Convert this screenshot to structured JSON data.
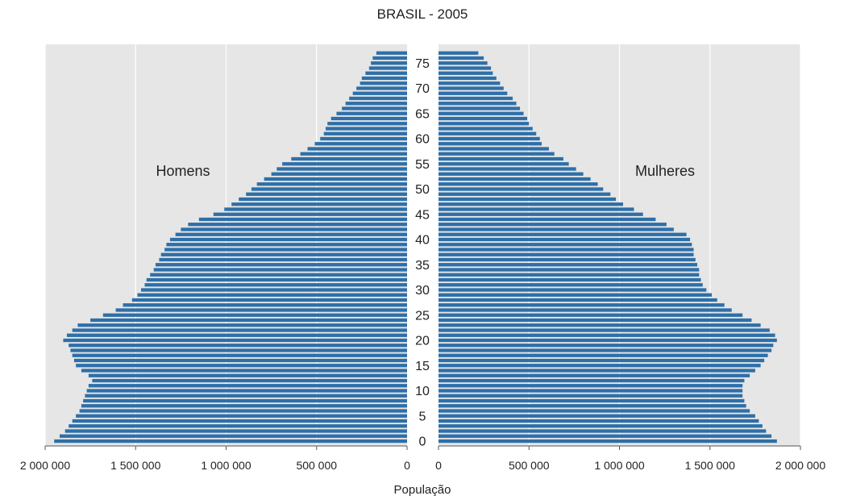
{
  "chart_data": {
    "type": "bar",
    "orientation": "horizontal",
    "title": "BRASIL - 2005",
    "xlabel": "População",
    "xlim": [
      0,
      2000000
    ],
    "x_ticks": [
      0,
      500000,
      1000000,
      1500000,
      2000000
    ],
    "x_tick_labels": [
      "0",
      "500 000",
      "1 000 000",
      "1 500 000",
      "2 000 000"
    ],
    "age_ticks": [
      0,
      5,
      10,
      15,
      20,
      25,
      30,
      35,
      40,
      45,
      50,
      55,
      60,
      65,
      70,
      75
    ],
    "age_tick_labels": [
      "0",
      "5",
      "10",
      "15",
      "20",
      "25",
      "30",
      "35",
      "40",
      "45",
      "50",
      "55",
      "60",
      "65",
      "70",
      "75"
    ],
    "grid": true,
    "colors": {
      "bar": "#2e6fa8",
      "background": "#e6e6e6",
      "grid": "#ffffff"
    },
    "categories": [
      0,
      1,
      2,
      3,
      4,
      5,
      6,
      7,
      8,
      9,
      10,
      11,
      12,
      13,
      14,
      15,
      16,
      17,
      18,
      19,
      20,
      21,
      22,
      23,
      24,
      25,
      26,
      27,
      28,
      29,
      30,
      31,
      32,
      33,
      34,
      35,
      36,
      37,
      38,
      39,
      40,
      41,
      42,
      43,
      44,
      45,
      46,
      47,
      48,
      49,
      50,
      51,
      52,
      53,
      54,
      55,
      56,
      57,
      58,
      59,
      60,
      61,
      62,
      63,
      64,
      65,
      66,
      67,
      68,
      69,
      70,
      71,
      72,
      73,
      74,
      75,
      76,
      77
    ],
    "series": [
      {
        "name": "Homens",
        "side": "left",
        "values": [
          1950000,
          1920000,
          1890000,
          1870000,
          1850000,
          1830000,
          1810000,
          1800000,
          1790000,
          1780000,
          1770000,
          1760000,
          1740000,
          1760000,
          1800000,
          1830000,
          1840000,
          1850000,
          1860000,
          1870000,
          1900000,
          1880000,
          1850000,
          1820000,
          1750000,
          1680000,
          1610000,
          1570000,
          1520000,
          1490000,
          1470000,
          1450000,
          1440000,
          1420000,
          1400000,
          1390000,
          1370000,
          1360000,
          1340000,
          1330000,
          1310000,
          1280000,
          1250000,
          1210000,
          1150000,
          1070000,
          1010000,
          970000,
          930000,
          890000,
          860000,
          830000,
          790000,
          750000,
          720000,
          690000,
          640000,
          590000,
          550000,
          510000,
          480000,
          460000,
          450000,
          440000,
          420000,
          390000,
          360000,
          340000,
          320000,
          300000,
          280000,
          260000,
          250000,
          230000,
          210000,
          200000,
          190000,
          170000
        ]
      },
      {
        "name": "Mulheres",
        "side": "right",
        "values": [
          1870000,
          1840000,
          1810000,
          1790000,
          1770000,
          1750000,
          1720000,
          1700000,
          1690000,
          1680000,
          1680000,
          1680000,
          1690000,
          1720000,
          1750000,
          1780000,
          1800000,
          1820000,
          1840000,
          1850000,
          1870000,
          1860000,
          1830000,
          1780000,
          1730000,
          1680000,
          1620000,
          1580000,
          1540000,
          1510000,
          1480000,
          1460000,
          1450000,
          1440000,
          1440000,
          1430000,
          1420000,
          1410000,
          1410000,
          1400000,
          1390000,
          1370000,
          1300000,
          1260000,
          1200000,
          1130000,
          1080000,
          1020000,
          980000,
          950000,
          910000,
          880000,
          840000,
          800000,
          760000,
          720000,
          690000,
          640000,
          610000,
          570000,
          560000,
          540000,
          520000,
          500000,
          490000,
          470000,
          450000,
          430000,
          410000,
          380000,
          360000,
          340000,
          320000,
          300000,
          290000,
          270000,
          250000,
          220000
        ]
      }
    ]
  }
}
